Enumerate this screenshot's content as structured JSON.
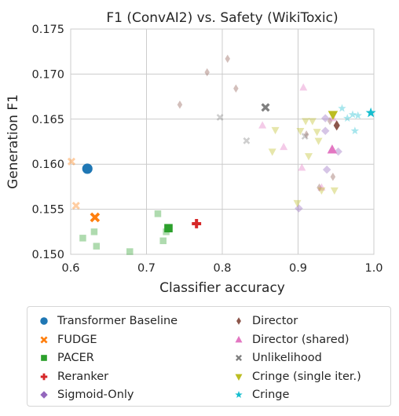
{
  "chart_data": {
    "type": "scatter",
    "title": "F1 (ConvAI2) vs. Safety (WikiToxic)",
    "xlabel": "Classifier accuracy",
    "ylabel": "Generation F1",
    "xlim": [
      0.6,
      1.0
    ],
    "ylim": [
      0.15,
      0.175
    ],
    "xticks": [
      "0.6",
      "0.7",
      "0.8",
      "0.9",
      "1.0"
    ],
    "yticks": [
      "0.150",
      "0.155",
      "0.160",
      "0.165",
      "0.170",
      "0.175"
    ],
    "grid": true,
    "legend_position": "bottom",
    "series": [
      {
        "name": "Transformer Baseline",
        "color": "#1f77b4",
        "marker": "circle",
        "points": [
          {
            "x": 0.622,
            "y": 0.1595,
            "highlight": true
          }
        ]
      },
      {
        "name": "FUDGE",
        "color": "#ff7f0e",
        "marker": "x",
        "points": [
          {
            "x": 0.632,
            "y": 0.1541,
            "highlight": true
          },
          {
            "x": 0.601,
            "y": 0.1603
          },
          {
            "x": 0.607,
            "y": 0.1554
          }
        ]
      },
      {
        "name": "PACER",
        "color": "#2ca02c",
        "marker": "square",
        "points": [
          {
            "x": 0.729,
            "y": 0.1529,
            "highlight": true
          },
          {
            "x": 0.616,
            "y": 0.1518
          },
          {
            "x": 0.631,
            "y": 0.1525
          },
          {
            "x": 0.634,
            "y": 0.1509
          },
          {
            "x": 0.678,
            "y": 0.1503
          },
          {
            "x": 0.715,
            "y": 0.1545
          },
          {
            "x": 0.722,
            "y": 0.1515
          },
          {
            "x": 0.726,
            "y": 0.1525
          }
        ]
      },
      {
        "name": "Reranker",
        "color": "#d62728",
        "marker": "plus",
        "points": [
          {
            "x": 0.766,
            "y": 0.1534,
            "highlight": true
          }
        ]
      },
      {
        "name": "Sigmoid-Only",
        "color": "#9467bd",
        "marker": "diamond",
        "points": [
          {
            "x": 0.901,
            "y": 0.1551
          },
          {
            "x": 0.938,
            "y": 0.1594
          },
          {
            "x": 0.953,
            "y": 0.1614
          },
          {
            "x": 0.936,
            "y": 0.1637
          },
          {
            "x": 0.936,
            "y": 0.1651
          }
        ]
      },
      {
        "name": "Director",
        "color": "#8c564b",
        "marker": "thin-diamond",
        "points": [
          {
            "x": 0.951,
            "y": 0.1643,
            "highlight": true
          },
          {
            "x": 0.744,
            "y": 0.1666
          },
          {
            "x": 0.78,
            "y": 0.1702
          },
          {
            "x": 0.807,
            "y": 0.1717
          },
          {
            "x": 0.818,
            "y": 0.1684
          },
          {
            "x": 0.911,
            "y": 0.1633
          },
          {
            "x": 0.946,
            "y": 0.1586
          },
          {
            "x": 0.928,
            "y": 0.1574
          },
          {
            "x": 0.942,
            "y": 0.1648
          }
        ]
      },
      {
        "name": "Director (shared)",
        "color": "#e377c2",
        "marker": "triangle-up",
        "points": [
          {
            "x": 0.945,
            "y": 0.1616,
            "highlight": true
          },
          {
            "x": 0.853,
            "y": 0.1643
          },
          {
            "x": 0.881,
            "y": 0.1619
          },
          {
            "x": 0.905,
            "y": 0.1596
          },
          {
            "x": 0.907,
            "y": 0.1685
          },
          {
            "x": 0.946,
            "y": 0.1651
          },
          {
            "x": 0.931,
            "y": 0.1574
          }
        ]
      },
      {
        "name": "Unlikelihood",
        "color": "#7f7f7f",
        "marker": "x-small",
        "points": [
          {
            "x": 0.857,
            "y": 0.1663,
            "highlight": true
          },
          {
            "x": 0.797,
            "y": 0.1652
          },
          {
            "x": 0.832,
            "y": 0.1626
          },
          {
            "x": 0.909,
            "y": 0.1631
          }
        ]
      },
      {
        "name": "Cringe (single iter.)",
        "color": "#bcbd22",
        "marker": "triangle-down",
        "points": [
          {
            "x": 0.946,
            "y": 0.1655,
            "highlight": true
          },
          {
            "x": 0.87,
            "y": 0.1638
          },
          {
            "x": 0.866,
            "y": 0.1614
          },
          {
            "x": 0.91,
            "y": 0.1648
          },
          {
            "x": 0.919,
            "y": 0.1648
          },
          {
            "x": 0.903,
            "y": 0.1637
          },
          {
            "x": 0.914,
            "y": 0.1609
          },
          {
            "x": 0.925,
            "y": 0.1636
          },
          {
            "x": 0.927,
            "y": 0.1626
          },
          {
            "x": 0.899,
            "y": 0.1557
          },
          {
            "x": 0.931,
            "y": 0.1571
          },
          {
            "x": 0.948,
            "y": 0.1571
          }
        ]
      },
      {
        "name": "Cringe",
        "color": "#17becf",
        "marker": "star",
        "points": [
          {
            "x": 0.996,
            "y": 0.1657,
            "highlight": true
          },
          {
            "x": 0.958,
            "y": 0.1662
          },
          {
            "x": 0.965,
            "y": 0.1651
          },
          {
            "x": 0.972,
            "y": 0.1655
          },
          {
            "x": 0.979,
            "y": 0.1654
          },
          {
            "x": 0.975,
            "y": 0.1637
          }
        ]
      }
    ]
  }
}
